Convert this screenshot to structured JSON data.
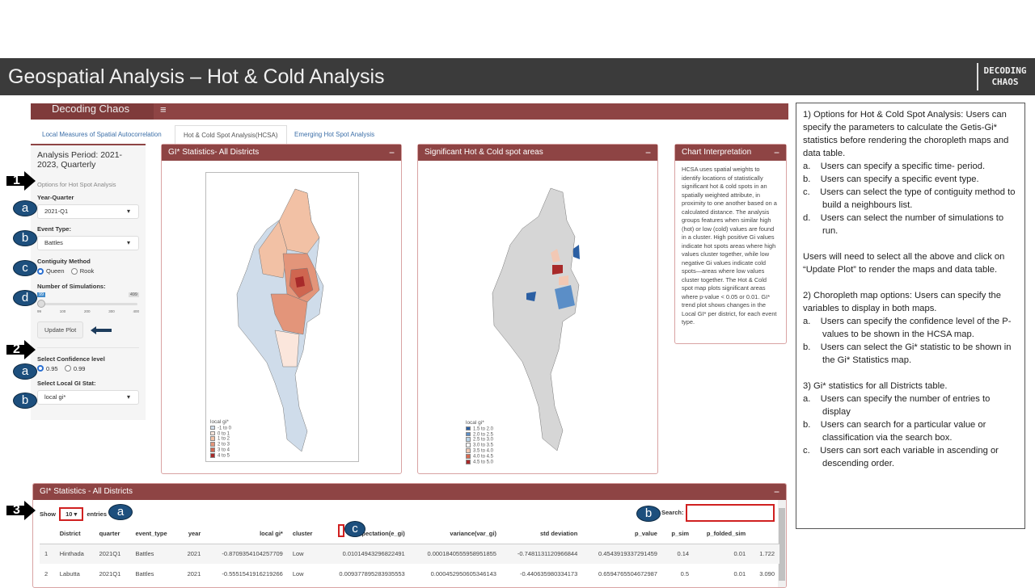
{
  "slide_title": "Geospatial Analysis – Hot & Cold Analysis",
  "logo": {
    "line1": "DECODING",
    "line2": "CHAOS"
  },
  "app": {
    "brand": "Decoding Chaos",
    "menu_icon": "hamburger-icon"
  },
  "tabs": [
    {
      "label": "Local Measures of Spatial Autocorrelation"
    },
    {
      "label": "Hot & Cold Spot Analysis(HCSA)",
      "active": true
    },
    {
      "label": "Emerging Hot Spot Analysis"
    }
  ],
  "sidebar": {
    "period": "Analysis Period: 2021-2023, Quarterly",
    "options_heading": "Options for Hot Spot Analysis",
    "year_quarter_label": "Year-Quarter",
    "year_quarter_value": "2021-Q1",
    "event_type_label": "Event Type:",
    "event_type_value": "Battles",
    "contiguity_label": "Contiguity Method",
    "contiguity_options": [
      "Queen",
      "Rook"
    ],
    "contiguity_selected": "Queen",
    "simulations_label": "Number of Simulations:",
    "simulations_value": "99",
    "simulations_max": "499",
    "slider_ticks": [
      "99",
      "100",
      "200",
      "300",
      "400"
    ],
    "update_button": "Update Plot",
    "confidence_label": "Select Confidence level",
    "confidence_options": [
      "0.95",
      "0.99"
    ],
    "confidence_selected": "0.95",
    "gi_stat_label": "Select Local GI Stat:",
    "gi_stat_value": "local gi*"
  },
  "panels": {
    "gi_title": "GI* Statistics- All Districts",
    "hcsa_title": "Significant Hot & Cold spot areas",
    "interp_title": "Chart Interpretation",
    "interp_text": "HCSA uses spatial weights to identify locations of statistically significant hot & cold spots in an spatially weighted attribute, in proximity to one another based on a calculated distance. The analysis groups features when similar high (hot) or low (cold) values are found in a cluster. High positive Gi values indicate hot spots areas where high values cluster together, while low negative Gi values indicate cold spots—areas where low values cluster together. The Hot & Cold spot map plots significant areas where p-value < 0.05 or 0.01. GI* trend plot shows changes in the Local GI* per district, for each event type.",
    "collapse_icon": "minus-icon"
  },
  "legend1": {
    "title": "local gi*",
    "items": [
      {
        "label": "-1 to 0",
        "color": "#cfdcea"
      },
      {
        "label": "0 to 1",
        "color": "#fbe6dc"
      },
      {
        "label": "1 to 2",
        "color": "#f2c1a5"
      },
      {
        "label": "2 to 3",
        "color": "#e3957a"
      },
      {
        "label": "3 to 4",
        "color": "#cf6650"
      },
      {
        "label": "4 to 5",
        "color": "#a82a2a"
      }
    ]
  },
  "legend2": {
    "title": "local gi*",
    "items": [
      {
        "label": "1.5 to 2.0",
        "color": "#2b5fa3"
      },
      {
        "label": "2.0 to 2.5",
        "color": "#5b8ec7"
      },
      {
        "label": "2.5 to 3.0",
        "color": "#b9d3e8"
      },
      {
        "label": "3.0 to 3.5",
        "color": "#f5f5f5"
      },
      {
        "label": "3.5 to 4.0",
        "color": "#f2c8b4"
      },
      {
        "label": "4.0 to 4.5",
        "color": "#d7694f"
      },
      {
        "label": "4.5 to 5.0",
        "color": "#a82a2a"
      }
    ]
  },
  "table": {
    "title": "GI* Statistics - All Districts",
    "show": "Show",
    "entries_value": "10",
    "entries": "entries",
    "search_label": "Search:",
    "search_value": "",
    "columns": [
      "",
      "District",
      "quarter",
      "event_type",
      "year",
      "local gi*",
      "cluster",
      "expectation(e_gi)",
      "variance(var_gi)",
      "std deviation",
      "p_value",
      "p_sim",
      "p_folded_sim",
      ""
    ],
    "rows": [
      [
        "1",
        "Hinthada",
        "2021Q1",
        "Battles",
        "2021",
        "-0.8709354104257709",
        "Low",
        "0.01014943296822491",
        "0.0001840555958951855",
        "-0.7481131120966844",
        "0.4543919337291459",
        "0.14",
        "0.01",
        "1.722"
      ],
      [
        "2",
        "Labutta",
        "2021Q1",
        "Battles",
        "2021",
        "-0.5551541916219266",
        "Low",
        "0.009377895283935553",
        "0.000452950605346143",
        "-0.440635980334173",
        "0.6594765504672987",
        "0.5",
        "0.01",
        "3.090"
      ]
    ]
  },
  "annotations": {
    "numbers": [
      "1",
      "2",
      "3"
    ],
    "letters": {
      "a": "a",
      "b": "b",
      "c": "c",
      "d": "d"
    }
  },
  "notes": {
    "p1": "1) Options for Hot & Cold Spot Analysis: Users can specify the parameters to calculate the Getis-Gi* statistics before rendering the choropleth maps and data table.",
    "p1_items": [
      "a.    Users can specify a specific time- period.",
      "b.    Users can specify a specific event type.",
      "c.    Users can select the type of contiguity method to build a neighbours list.",
      "d.    Users can select the number of simulations to run."
    ],
    "p1b": "Users will need to select all the above and click on “Update Plot” to render the maps and data table.",
    "p2": "2) Choropleth map options: Users can specify the variables to display in both maps.",
    "p2_items": [
      "a.    Users can specify the confidence level of the P-values to be shown in the HCSA map.",
      "b.    Users can select the Gi* statistic to be shown in the Gi* Statistics map."
    ],
    "p3": "3) Gi* statistics for all Districts table.",
    "p3_items": [
      "a.    Users can specify the number of entries to display",
      "b.    Users can search for a particular value or classification via the search box.",
      "c.    Users can sort each variable in ascending or descending order."
    ]
  }
}
